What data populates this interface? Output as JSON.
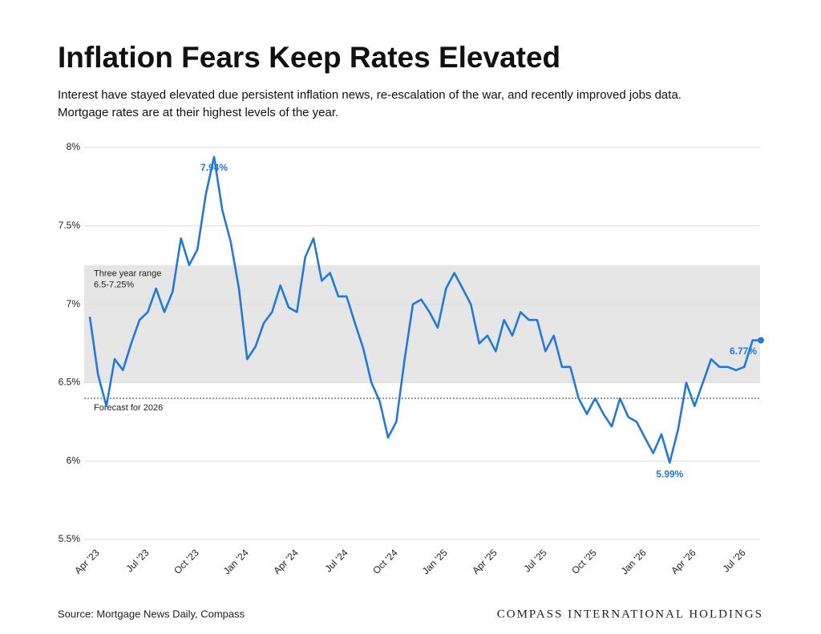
{
  "chart_data": {
    "type": "line",
    "title": "Inflation Fears Keep Rates Elevated",
    "subtitle": [
      "Interest have stayed elevated due persistent inflation news, re-escalation of the war, and recently improved jobs data.",
      "Mortgage rates are at their highest levels of the year."
    ],
    "source": "Source: Mortgage News Daily, Compass",
    "brand": "COMPASS INTERNATIONAL HOLDINGS",
    "categories": [
      null,
      "Apr '23",
      null,
      null,
      null,
      null,
      null,
      "Jul '23",
      null,
      null,
      null,
      null,
      null,
      "Oct '23",
      null,
      null,
      null,
      null,
      null,
      "Jan '24",
      null,
      null,
      null,
      null,
      null,
      "Apr '24",
      null,
      null,
      null,
      null,
      null,
      "Jul '24",
      null,
      null,
      null,
      null,
      null,
      "Oct '24",
      null,
      null,
      null,
      null,
      null,
      "Jan '25",
      null,
      null,
      null,
      null,
      null,
      "Apr '25",
      null,
      null,
      null,
      null,
      null,
      "Jul '25",
      null,
      null,
      null,
      null,
      null,
      "Oct '25",
      null,
      null,
      null,
      null,
      null,
      "Jan '26",
      null,
      null,
      null,
      null,
      null,
      "Apr '26",
      null,
      null,
      null,
      null,
      null,
      "Jul '26",
      null,
      null
    ],
    "series": [
      {
        "name": "Mortgage rate",
        "color": "#1f7ae0",
        "values": [
          6.92,
          6.55,
          6.35,
          6.65,
          6.58,
          6.75,
          6.9,
          6.95,
          7.1,
          6.95,
          7.08,
          7.42,
          7.25,
          7.35,
          7.7,
          7.94,
          7.6,
          7.4,
          7.1,
          6.65,
          6.73,
          6.88,
          6.95,
          7.12,
          6.98,
          6.95,
          7.3,
          7.42,
          7.15,
          7.2,
          7.05,
          7.05,
          6.88,
          6.72,
          6.5,
          6.38,
          6.15,
          6.25,
          6.65,
          7.0,
          7.03,
          6.95,
          6.85,
          7.1,
          7.2,
          7.1,
          7.0,
          6.75,
          6.8,
          6.7,
          6.9,
          6.8,
          6.95,
          6.9,
          6.9,
          6.7,
          6.8,
          6.6,
          6.6,
          6.4,
          6.3,
          6.4,
          6.3,
          6.22,
          6.4,
          6.28,
          6.25,
          6.15,
          6.05,
          6.17,
          5.99,
          6.2,
          6.5,
          6.35,
          6.5,
          6.65,
          6.6,
          6.6,
          6.58,
          6.6,
          6.77,
          6.77
        ],
        "value_labels": [
          null,
          null,
          null,
          null,
          null,
          null,
          null,
          null,
          null,
          null,
          null,
          null,
          null,
          null,
          null,
          "7.94%",
          null,
          null,
          null,
          null,
          null,
          null,
          null,
          null,
          null,
          null,
          null,
          null,
          null,
          null,
          null,
          null,
          null,
          null,
          null,
          null,
          null,
          null,
          null,
          null,
          null,
          null,
          null,
          null,
          null,
          null,
          null,
          null,
          null,
          null,
          null,
          null,
          null,
          null,
          null,
          null,
          null,
          null,
          null,
          null,
          null,
          null,
          null,
          null,
          null,
          null,
          null,
          null,
          null,
          null,
          "5.99%",
          null,
          null,
          null,
          null,
          null,
          null,
          null,
          null,
          null,
          null,
          "6.77%"
        ]
      }
    ],
    "ylim": [
      5.5,
      8
    ],
    "yticks": [
      {
        "value": 5.5,
        "label": "5.5%"
      },
      {
        "value": 6,
        "label": "6%"
      },
      {
        "value": 6.5,
        "label": "6.5%"
      },
      {
        "value": 7,
        "label": "7%"
      },
      {
        "value": 7.5,
        "label": "7.5%"
      },
      {
        "value": 8,
        "label": "8%"
      }
    ],
    "grid": true,
    "bands": [
      {
        "from": 6.5,
        "to": 7.25,
        "label": [
          "Three year range",
          "6.5-7.25%"
        ],
        "color": "#e6e6e6"
      }
    ],
    "reference_lines": [
      {
        "value": 6.4,
        "label": "Forecast for 2026"
      }
    ]
  }
}
